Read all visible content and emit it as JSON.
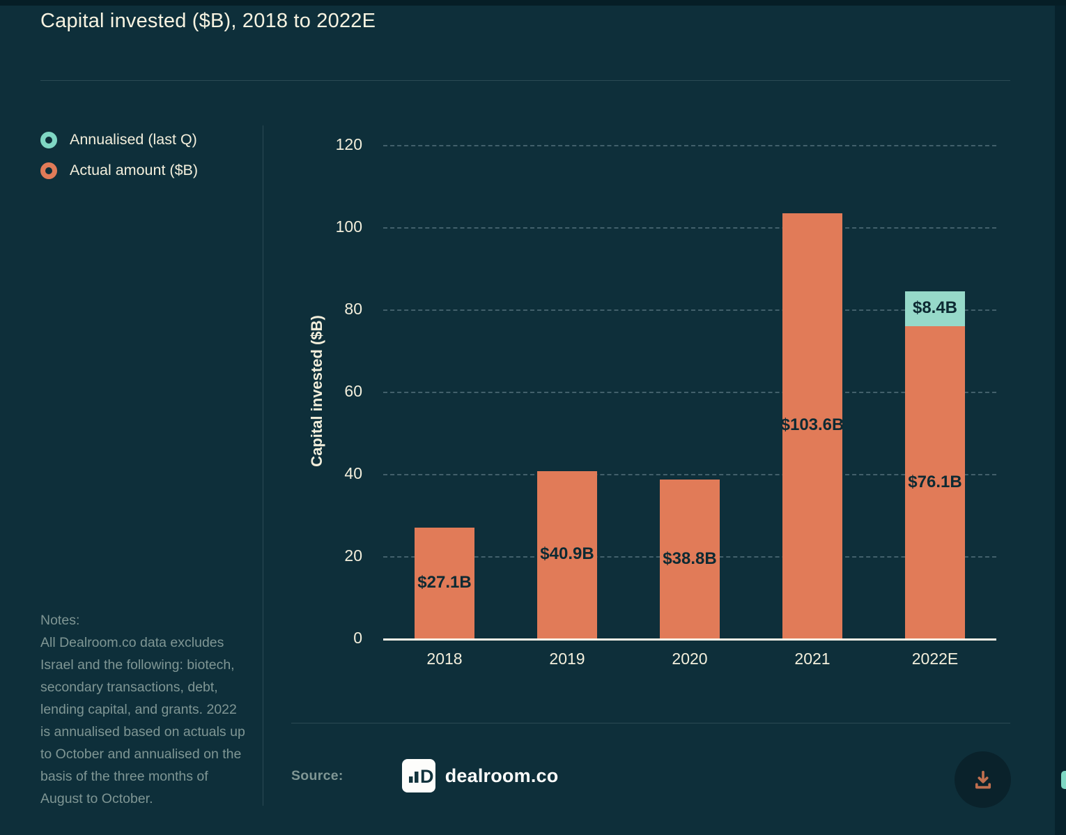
{
  "page": {
    "title": "Capital invested ($B), 2018 to 2022E"
  },
  "legend": {
    "items": [
      {
        "label": "Annualised (last Q)",
        "color": "#7fd7c4"
      },
      {
        "label": "Actual amount ($B)",
        "color": "#e17b58"
      }
    ]
  },
  "chart_data": {
    "type": "bar",
    "stacked": true,
    "title": "Capital invested ($B), 2018 to 2022E",
    "categories": [
      "2018",
      "2019",
      "2020",
      "2021",
      "2022E"
    ],
    "series": [
      {
        "name": "Actual amount ($B)",
        "color": "#e17b58",
        "values": [
          27.1,
          40.9,
          38.8,
          103.6,
          76.1
        ],
        "labels": [
          "$27.1B",
          "$40.9B",
          "$38.8B",
          "$103.6B",
          "$76.1B"
        ]
      },
      {
        "name": "Annualised (last Q)",
        "color": "#96d9c9",
        "values": [
          0,
          0,
          0,
          0,
          8.4
        ],
        "labels": [
          "",
          "",
          "",
          "",
          "$8.4B"
        ]
      }
    ],
    "xlabel": "",
    "ylabel": "Capital invested ($B)",
    "ylim": [
      0,
      120
    ],
    "yticks": [
      0,
      20,
      40,
      60,
      80,
      100,
      120
    ],
    "grid": "horizontal-dashed",
    "legend_position": "left"
  },
  "notes": {
    "heading": "Notes:",
    "body": "All Dealroom.co data excludes Israel and the following: biotech, secondary transactions, debt, lending capital, and grants. 2022 is annualised based on actuals up to October and annualised on the basis of the three months of August to October."
  },
  "source": {
    "label": "Source:",
    "name": "dealroom.co"
  },
  "colors": {
    "background": "#0e2f3a",
    "top_bar": "#061e26",
    "right_strip": "#07222c",
    "accent_orange": "#e17b58",
    "accent_teal": "#96d9c9",
    "title_text": "#f7f3e1",
    "axis_text": "#f3efdc",
    "notes_text": "#7f9694",
    "bar_label_text": "#0d2a33",
    "gridline": "#42606b",
    "axis_line": "#faf6e8",
    "download_icon": "#c06f4f"
  }
}
